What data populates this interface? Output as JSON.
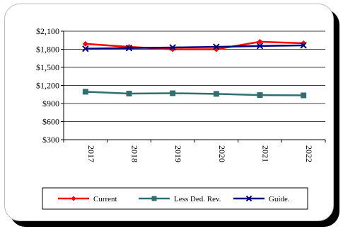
{
  "chart_data": {
    "type": "line",
    "categories": [
      "2017",
      "2018",
      "2019",
      "2020",
      "2021",
      "2022"
    ],
    "ylim": [
      300,
      2100
    ],
    "ytick_step": 300,
    "ytick_labels": [
      "$300",
      "$600",
      "$900",
      "$1,200",
      "$1,500",
      "$1,800",
      "$2,100"
    ],
    "grid": "horizontal",
    "legend": "bottom",
    "series": [
      {
        "name": "Current",
        "color": "#ff0000",
        "marker": "diamond",
        "values": [
          1890,
          1840,
          1800,
          1800,
          1925,
          1900
        ]
      },
      {
        "name": "Less Ded. Rev.",
        "color": "#2f6f6f",
        "marker": "square",
        "values": [
          1095,
          1065,
          1070,
          1060,
          1040,
          1035
        ]
      },
      {
        "name": "Guide.",
        "color": "#00007f",
        "marker": "x",
        "values": [
          1810,
          1820,
          1830,
          1840,
          1855,
          1865
        ]
      }
    ]
  }
}
